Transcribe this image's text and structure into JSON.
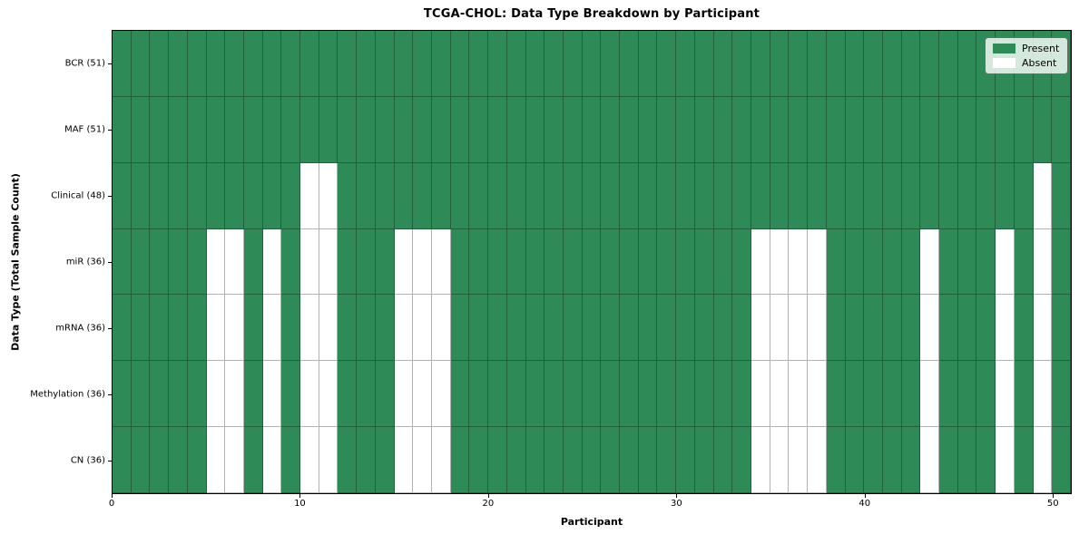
{
  "chart_data": {
    "type": "heatmap",
    "title": "TCGA-CHOL: Data Type Breakdown by Participant",
    "xlabel": "Participant",
    "ylabel": "Data Type (Total Sample Count)",
    "n_columns": 51,
    "x_ticks": [
      0,
      10,
      20,
      30,
      40,
      50
    ],
    "x_range": [
      0,
      51
    ],
    "grid": "cell-outlines",
    "legend_position": "upper right",
    "colors": {
      "present": "#2e8b57",
      "absent": "#ffffff",
      "grid_line": "rgba(0,0,0,0.3)",
      "plot_border": "#000000"
    },
    "legend": [
      {
        "label": "Present",
        "color": "#2e8b57"
      },
      {
        "label": "Absent",
        "color": "#ffffff"
      }
    ],
    "rows": [
      {
        "label": "BCR (51)",
        "present_count": 51,
        "absent_columns": []
      },
      {
        "label": "MAF (51)",
        "present_count": 51,
        "absent_columns": []
      },
      {
        "label": "Clinical (48)",
        "present_count": 48,
        "absent_columns": [
          10,
          11,
          49
        ]
      },
      {
        "label": "miR (36)",
        "present_count": 36,
        "absent_columns": [
          5,
          6,
          8,
          10,
          11,
          15,
          16,
          17,
          34,
          35,
          36,
          37,
          43,
          47,
          49
        ]
      },
      {
        "label": "mRNA (36)",
        "present_count": 36,
        "absent_columns": [
          5,
          6,
          8,
          10,
          11,
          15,
          16,
          17,
          34,
          35,
          36,
          37,
          43,
          47,
          49
        ]
      },
      {
        "label": "Methylation (36)",
        "present_count": 36,
        "absent_columns": [
          5,
          6,
          8,
          10,
          11,
          15,
          16,
          17,
          34,
          35,
          36,
          37,
          43,
          47,
          49
        ]
      },
      {
        "label": "CN (36)",
        "present_count": 36,
        "absent_columns": [
          5,
          6,
          8,
          10,
          11,
          15,
          16,
          17,
          34,
          35,
          36,
          37,
          43,
          47,
          49
        ]
      }
    ]
  }
}
